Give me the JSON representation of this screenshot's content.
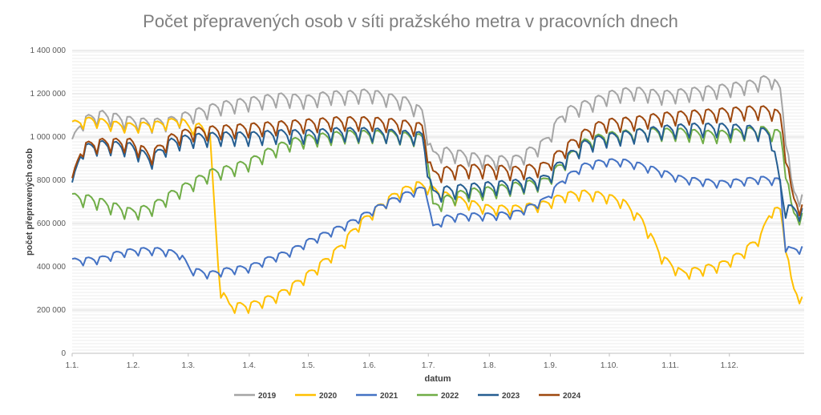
{
  "chart_data": {
    "type": "line",
    "title": "Počet přepravených osob v síti pražského metra v pracovních dnech",
    "xlabel": "datum",
    "ylabel": "počet přepravených osob",
    "x_ticks": [
      "1.1.",
      "1.2.",
      "1.3.",
      "1.4.",
      "1.5.",
      "1.6.",
      "1.7.",
      "1.8.",
      "1.9.",
      "1.10.",
      "1.11.",
      "1.12."
    ],
    "x_tick_days": [
      0,
      31,
      59,
      90,
      120,
      151,
      181,
      212,
      243,
      273,
      304,
      334
    ],
    "x_range": [
      0,
      372
    ],
    "ylim": [
      0,
      1400000
    ],
    "y_ticks": [
      0,
      200000,
      400000,
      600000,
      800000,
      1000000,
      1200000,
      1400000
    ],
    "y_tick_labels": [
      "0",
      "200 000",
      "400 000",
      "600 000",
      "800 000",
      "1 000 000",
      "1 200 000",
      "1 400 000"
    ],
    "grid": true,
    "legend_position": "bottom",
    "series": [
      {
        "name": "2019",
        "color": "#a5a5a5",
        "x": [
          0,
          5,
          15,
          30,
          40,
          50,
          60,
          75,
          90,
          105,
          120,
          130,
          140,
          151,
          160,
          170,
          178,
          183,
          190,
          200,
          212,
          225,
          240,
          250,
          265,
          273,
          285,
          300,
          310,
          320,
          330,
          345,
          355,
          360,
          366,
          372
        ],
        "y": [
          960000,
          1060000,
          1090000,
          1060000,
          1050000,
          1060000,
          1090000,
          1130000,
          1150000,
          1170000,
          1160000,
          1180000,
          1180000,
          1190000,
          1170000,
          1150000,
          1100000,
          900000,
          920000,
          900000,
          880000,
          880000,
          960000,
          1100000,
          1150000,
          1180000,
          1200000,
          1180000,
          1190000,
          1200000,
          1210000,
          1230000,
          1260000,
          1200000,
          730000,
          700000
        ],
        "amplitude": 55000
      },
      {
        "name": "2020",
        "color": "#ffc000",
        "x": [
          0,
          10,
          20,
          30,
          45,
          55,
          60,
          65,
          70,
          72,
          75,
          80,
          90,
          105,
          115,
          125,
          135,
          145,
          155,
          165,
          175,
          180,
          190,
          200,
          212,
          225,
          240,
          250,
          260,
          270,
          280,
          290,
          300,
          310,
          320,
          330,
          340,
          350,
          355,
          360,
          366,
          372
        ],
        "y": [
          1050000,
          1070000,
          1050000,
          1040000,
          1050000,
          1070000,
          1030000,
          1040000,
          1000000,
          700000,
          290000,
          210000,
          210000,
          260000,
          320000,
          390000,
          470000,
          580000,
          660000,
          730000,
          770000,
          760000,
          720000,
          690000,
          660000,
          660000,
          680000,
          720000,
          730000,
          720000,
          690000,
          600000,
          430000,
          360000,
          380000,
          400000,
          450000,
          530000,
          650000,
          650000,
          290000,
          230000
        ],
        "amplitude": 40000
      },
      {
        "name": "2021",
        "color": "#4472c4",
        "x": [
          0,
          15,
          25,
          35,
          45,
          55,
          60,
          70,
          80,
          90,
          100,
          110,
          120,
          130,
          140,
          150,
          160,
          170,
          180,
          183,
          190,
          200,
          212,
          225,
          240,
          250,
          260,
          270,
          280,
          290,
          300,
          310,
          320,
          330,
          340,
          350,
          360,
          362,
          365,
          372
        ],
        "y": [
          420000,
          430000,
          460000,
          470000,
          470000,
          450000,
          380000,
          360000,
          380000,
          390000,
          430000,
          460000,
          510000,
          550000,
          590000,
          640000,
          690000,
          730000,
          760000,
          570000,
          620000,
          630000,
          630000,
          640000,
          700000,
          800000,
          860000,
          880000,
          880000,
          860000,
          830000,
          800000,
          790000,
          780000,
          790000,
          800000,
          790000,
          490000,
          470000,
          480000
        ],
        "amplitude": 30000
      },
      {
        "name": "2022",
        "color": "#70ad47",
        "x": [
          0,
          10,
          20,
          30,
          40,
          50,
          60,
          70,
          80,
          90,
          100,
          110,
          120,
          130,
          140,
          150,
          160,
          170,
          180,
          183,
          190,
          200,
          212,
          225,
          240,
          250,
          260,
          270,
          280,
          290,
          300,
          310,
          320,
          330,
          340,
          350,
          355,
          360,
          366,
          372
        ],
        "y": [
          710000,
          700000,
          670000,
          640000,
          660000,
          720000,
          770000,
          820000,
          840000,
          870000,
          920000,
          960000,
          980000,
          990000,
          1000000,
          1000000,
          1000000,
          990000,
          980000,
          660000,
          700000,
          730000,
          740000,
          760000,
          780000,
          870000,
          960000,
          990000,
          1000000,
          1010000,
          1010000,
          1010000,
          1000000,
          1000000,
          1010000,
          1020000,
          1010000,
          1000000,
          630000,
          620000
        ],
        "amplitude": 50000
      },
      {
        "name": "2023",
        "color": "#255e91",
        "x": [
          0,
          5,
          15,
          30,
          40,
          50,
          60,
          75,
          90,
          105,
          120,
          135,
          151,
          165,
          178,
          183,
          190,
          200,
          212,
          225,
          240,
          250,
          260,
          270,
          285,
          300,
          315,
          330,
          345,
          355,
          362,
          366,
          372
        ],
        "y": [
          760000,
          930000,
          950000,
          940000,
          880000,
          960000,
          980000,
          990000,
          990000,
          1000000,
          1000000,
          1010000,
          1010000,
          1000000,
          990000,
          720000,
          740000,
          750000,
          760000,
          770000,
          790000,
          880000,
          950000,
          980000,
          1000000,
          1020000,
          1030000,
          1030000,
          1020000,
          1000000,
          660000,
          650000,
          640000
        ],
        "amplitude": 55000
      },
      {
        "name": "2024",
        "color": "#9e480e",
        "x": [
          0,
          5,
          15,
          30,
          40,
          50,
          60,
          75,
          90,
          105,
          120,
          135,
          151,
          165,
          178,
          183,
          190,
          200,
          212,
          225,
          240,
          250,
          260,
          270,
          285,
          300,
          315,
          330,
          345,
          355,
          360,
          366,
          372
        ],
        "y": [
          780000,
          940000,
          960000,
          960000,
          900000,
          980000,
          1010000,
          1020000,
          1030000,
          1040000,
          1050000,
          1060000,
          1060000,
          1050000,
          1030000,
          810000,
          830000,
          840000,
          840000,
          830000,
          850000,
          930000,
          1000000,
          1050000,
          1060000,
          1080000,
          1090000,
          1100000,
          1110000,
          1110000,
          1080000,
          700000,
          650000
        ],
        "amplitude": 55000
      }
    ]
  }
}
